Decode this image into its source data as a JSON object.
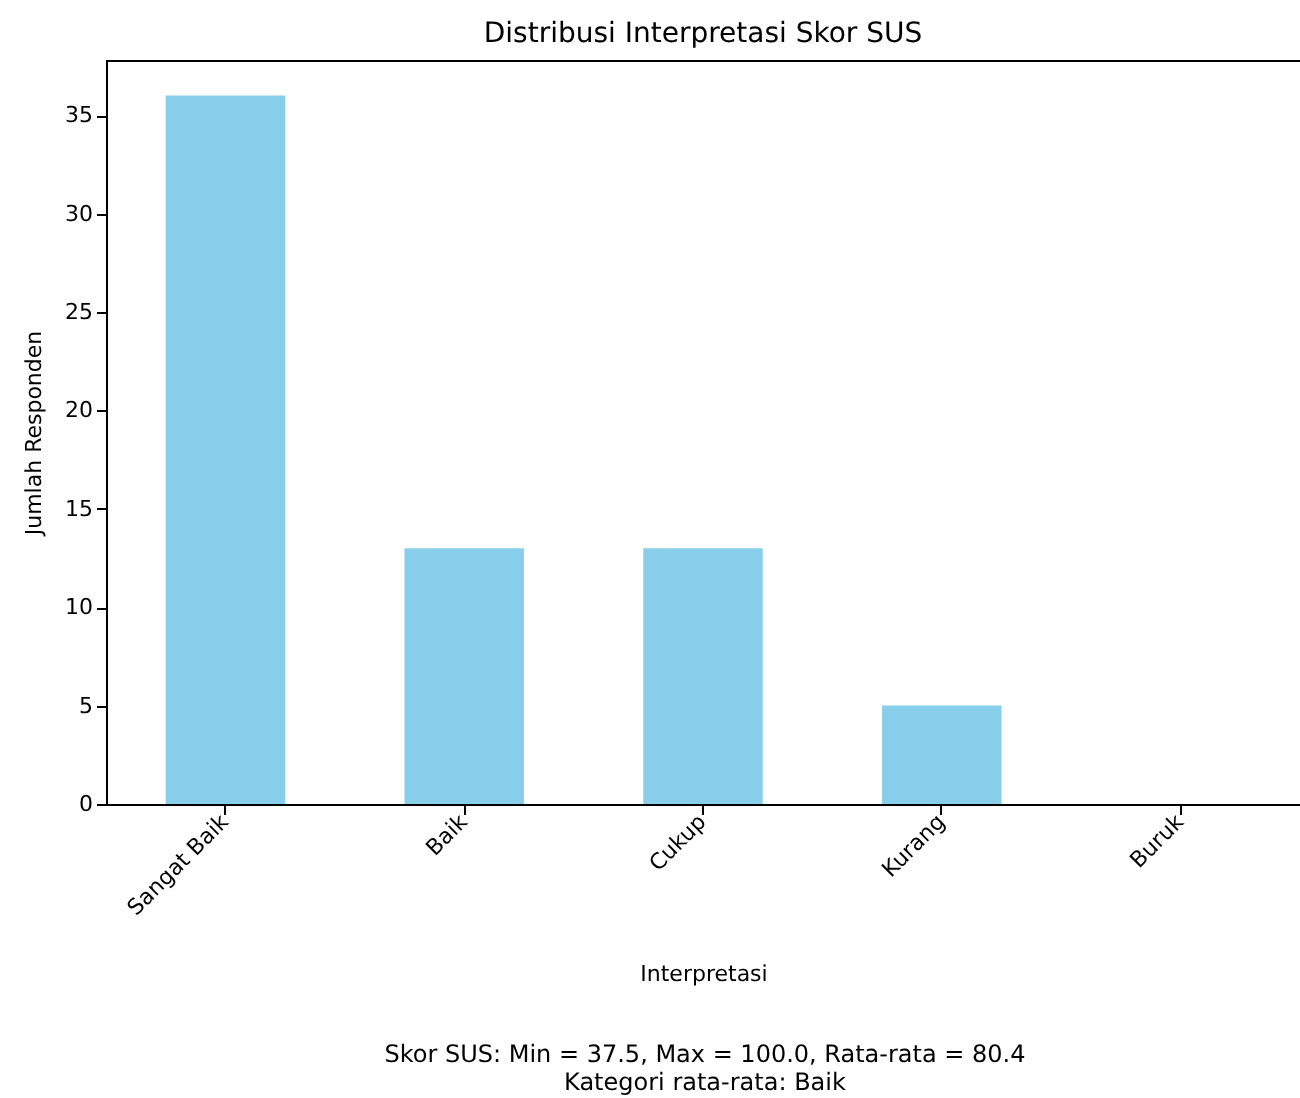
{
  "chart_data": {
    "type": "bar",
    "title": "Distribusi Interpretasi Skor SUS",
    "xlabel": "Interpretasi",
    "ylabel": "Jumlah Responden",
    "categories": [
      "Sangat Baik",
      "Baik",
      "Cukup",
      "Kurang",
      "Buruk"
    ],
    "values": [
      36,
      13,
      13,
      5,
      0
    ],
    "color": "#87ceeb",
    "ylim": [
      0,
      37.8
    ],
    "yticks": [
      0,
      5,
      10,
      15,
      20,
      25,
      30,
      35
    ],
    "grid": false,
    "annotations": [
      "Skor SUS: Min = 37.5, Max = 100.0, Rata-rata = 80.4",
      "Kategori rata-rata: Baik"
    ]
  }
}
